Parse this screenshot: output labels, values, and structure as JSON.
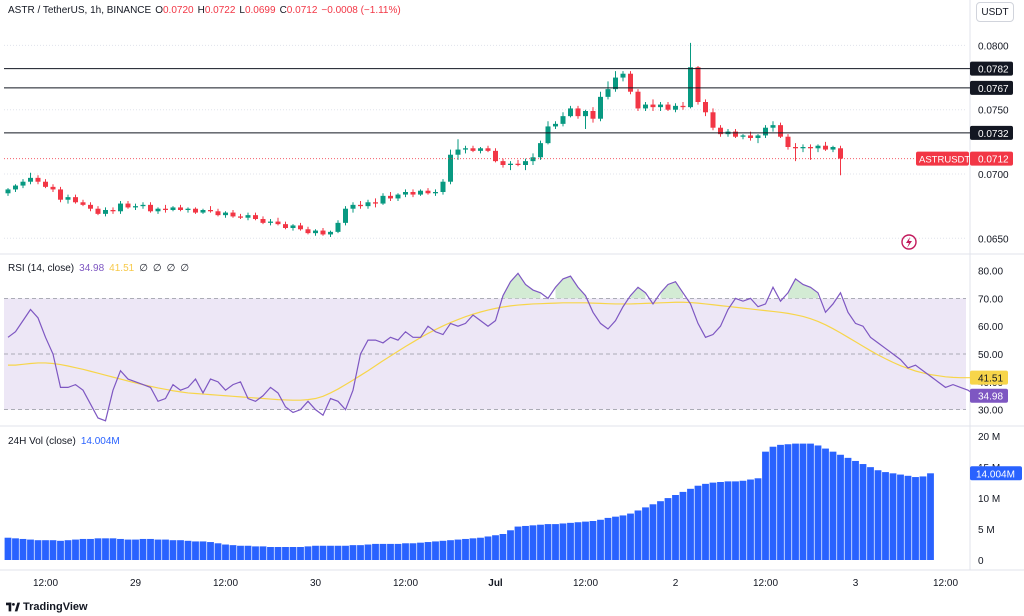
{
  "header": {
    "symbol": "ASTR / TetherUS, 1h, BINANCE",
    "open_label": "O",
    "open": "0.0720",
    "high_label": "H",
    "high": "0.0722",
    "low_label": "L",
    "low": "0.0699",
    "close_label": "C",
    "close": "0.0712",
    "change": "−0.0008 (−1.11%)",
    "currency_button": "USDT"
  },
  "colors": {
    "up": "#089981",
    "down": "#f23645",
    "rsi_line": "#7e57c2",
    "rsi_ma": "#f7d54a",
    "rsi_band": "#ede7f6",
    "volume": "#2962ff"
  },
  "rsi_legend": {
    "title": "RSI (14, close)",
    "rsi_value": "34.98",
    "ma_value": "41.51",
    "extra": [
      "∅",
      "∅",
      "∅",
      "∅"
    ]
  },
  "vol_legend": {
    "title": "24H Vol (close)",
    "value": "14.004M"
  },
  "price_tags": {
    "symbol_tag": "ASTRUSDT",
    "last_price": "0.0712"
  },
  "footer": {
    "brand": "TradingView"
  },
  "chart_data": [
    {
      "type": "candlestick",
      "y_ticks": [
        "0.0800",
        "0.0750",
        "0.0700",
        "0.0650"
      ],
      "y_tick_values": [
        0.08,
        0.075,
        0.07,
        0.065
      ],
      "ylim": [
        0.0644,
        0.0812
      ],
      "horizontal_lines": [
        {
          "value": 0.0782,
          "label": "0.0782"
        },
        {
          "value": 0.0767,
          "label": "0.0767"
        },
        {
          "value": 0.0732,
          "label": "0.0732"
        }
      ],
      "last_price": 0.0712,
      "x_tick_labels": [
        "12:00",
        "29",
        "12:00",
        "30",
        "12:00",
        "Jul",
        "12:00",
        "2",
        "12:00",
        "3",
        "12:00"
      ],
      "x_tick_index": [
        5,
        17,
        29,
        41,
        53,
        65,
        77,
        89,
        101,
        113,
        125
      ],
      "candles_ohlc": [
        [
          0.0685,
          0.0689,
          0.0683,
          0.0688
        ],
        [
          0.0688,
          0.0692,
          0.0686,
          0.0691
        ],
        [
          0.0691,
          0.0696,
          0.0689,
          0.0694
        ],
        [
          0.0694,
          0.0701,
          0.0692,
          0.0697
        ],
        [
          0.0697,
          0.0699,
          0.0692,
          0.0694
        ],
        [
          0.0694,
          0.0696,
          0.0689,
          0.069
        ],
        [
          0.069,
          0.0692,
          0.0686,
          0.0688
        ],
        [
          0.0688,
          0.069,
          0.0678,
          0.068
        ],
        [
          0.068,
          0.0684,
          0.0677,
          0.0682
        ],
        [
          0.0682,
          0.0684,
          0.0677,
          0.0678
        ],
        [
          0.0678,
          0.068,
          0.0675,
          0.0676
        ],
        [
          0.0676,
          0.0678,
          0.0671,
          0.0673
        ],
        [
          0.0673,
          0.0675,
          0.0668,
          0.0669
        ],
        [
          0.0669,
          0.0674,
          0.0667,
          0.0672
        ],
        [
          0.0672,
          0.0674,
          0.0669,
          0.0671
        ],
        [
          0.0671,
          0.0679,
          0.0669,
          0.0677
        ],
        [
          0.0677,
          0.0679,
          0.0673,
          0.0674
        ],
        [
          0.0674,
          0.0677,
          0.0672,
          0.0675
        ],
        [
          0.0675,
          0.0678,
          0.0673,
          0.0676
        ],
        [
          0.0676,
          0.0678,
          0.067,
          0.0671
        ],
        [
          0.0671,
          0.0674,
          0.0669,
          0.0673
        ],
        [
          0.0673,
          0.0676,
          0.067,
          0.0672
        ],
        [
          0.0672,
          0.0675,
          0.0671,
          0.0674
        ],
        [
          0.0674,
          0.0676,
          0.0671,
          0.0672
        ],
        [
          0.0672,
          0.0674,
          0.067,
          0.0673
        ],
        [
          0.0673,
          0.0674,
          0.0669,
          0.067
        ],
        [
          0.067,
          0.0673,
          0.0669,
          0.0672
        ],
        [
          0.0672,
          0.0675,
          0.067,
          0.0671
        ],
        [
          0.0671,
          0.0673,
          0.0667,
          0.0668
        ],
        [
          0.0668,
          0.0671,
          0.0666,
          0.067
        ],
        [
          0.067,
          0.0672,
          0.0666,
          0.0667
        ],
        [
          0.0667,
          0.0669,
          0.0665,
          0.0666
        ],
        [
          0.0666,
          0.067,
          0.0664,
          0.0668
        ],
        [
          0.0668,
          0.067,
          0.0664,
          0.0665
        ],
        [
          0.0665,
          0.0667,
          0.0661,
          0.0662
        ],
        [
          0.0662,
          0.0665,
          0.066,
          0.0663
        ],
        [
          0.0663,
          0.0666,
          0.066,
          0.0661
        ],
        [
          0.0661,
          0.0663,
          0.0657,
          0.0658
        ],
        [
          0.0658,
          0.0661,
          0.0656,
          0.066
        ],
        [
          0.066,
          0.0662,
          0.0656,
          0.0657
        ],
        [
          0.0657,
          0.0659,
          0.0653,
          0.0654
        ],
        [
          0.0654,
          0.0657,
          0.0652,
          0.0656
        ],
        [
          0.0656,
          0.0658,
          0.0652,
          0.0653
        ],
        [
          0.0653,
          0.0656,
          0.0651,
          0.0655
        ],
        [
          0.0655,
          0.0664,
          0.0654,
          0.0662
        ],
        [
          0.0662,
          0.0675,
          0.066,
          0.0673
        ],
        [
          0.0673,
          0.0678,
          0.067,
          0.0676
        ],
        [
          0.0676,
          0.0679,
          0.0673,
          0.0675
        ],
        [
          0.0675,
          0.068,
          0.0673,
          0.0678
        ],
        [
          0.0678,
          0.0681,
          0.0674,
          0.0677
        ],
        [
          0.0677,
          0.0685,
          0.0676,
          0.0683
        ],
        [
          0.0683,
          0.0686,
          0.0679,
          0.0681
        ],
        [
          0.0681,
          0.0685,
          0.0679,
          0.0684
        ],
        [
          0.0684,
          0.0688,
          0.0682,
          0.0686
        ],
        [
          0.0686,
          0.0688,
          0.0682,
          0.0684
        ],
        [
          0.0684,
          0.0688,
          0.0683,
          0.0687
        ],
        [
          0.0687,
          0.0689,
          0.0684,
          0.0685
        ],
        [
          0.0685,
          0.0688,
          0.0683,
          0.0686
        ],
        [
          0.0686,
          0.0696,
          0.0684,
          0.0694
        ],
        [
          0.0694,
          0.0719,
          0.0692,
          0.0715
        ],
        [
          0.0715,
          0.0727,
          0.0711,
          0.0719
        ],
        [
          0.0719,
          0.0722,
          0.0716,
          0.072
        ],
        [
          0.072,
          0.0722,
          0.0717,
          0.0718
        ],
        [
          0.0718,
          0.0721,
          0.0716,
          0.072
        ],
        [
          0.072,
          0.0722,
          0.0717,
          0.0718
        ],
        [
          0.0718,
          0.072,
          0.0709,
          0.071
        ],
        [
          0.071,
          0.0712,
          0.0705,
          0.0707
        ],
        [
          0.0707,
          0.071,
          0.0703,
          0.0708
        ],
        [
          0.0708,
          0.0711,
          0.0706,
          0.0707
        ],
        [
          0.0707,
          0.0712,
          0.0703,
          0.071
        ],
        [
          0.071,
          0.0716,
          0.0707,
          0.0713
        ],
        [
          0.0713,
          0.0726,
          0.0711,
          0.0724
        ],
        [
          0.0724,
          0.0741,
          0.0723,
          0.0737
        ],
        [
          0.0737,
          0.0741,
          0.0735,
          0.0739
        ],
        [
          0.0739,
          0.0748,
          0.0737,
          0.0745
        ],
        [
          0.0745,
          0.0753,
          0.0744,
          0.0751
        ],
        [
          0.0751,
          0.0753,
          0.0743,
          0.0745
        ],
        [
          0.0745,
          0.075,
          0.0735,
          0.0749
        ],
        [
          0.0749,
          0.0752,
          0.074,
          0.0743
        ],
        [
          0.0743,
          0.0764,
          0.0741,
          0.076
        ],
        [
          0.076,
          0.0772,
          0.0758,
          0.0766
        ],
        [
          0.0766,
          0.078,
          0.0764,
          0.0775
        ],
        [
          0.0775,
          0.078,
          0.0772,
          0.0778
        ],
        [
          0.0778,
          0.078,
          0.0762,
          0.0764
        ],
        [
          0.0764,
          0.0766,
          0.0749,
          0.0751
        ],
        [
          0.0751,
          0.0756,
          0.0749,
          0.0754
        ],
        [
          0.0754,
          0.0758,
          0.0749,
          0.0752
        ],
        [
          0.0752,
          0.0756,
          0.0749,
          0.0754
        ],
        [
          0.0754,
          0.0756,
          0.0749,
          0.075
        ],
        [
          0.075,
          0.0755,
          0.0748,
          0.0753
        ],
        [
          0.0753,
          0.0756,
          0.075,
          0.0752
        ],
        [
          0.0752,
          0.0802,
          0.0751,
          0.0783
        ],
        [
          0.0783,
          0.0784,
          0.0754,
          0.0756
        ],
        [
          0.0756,
          0.0758,
          0.0745,
          0.0748
        ],
        [
          0.0748,
          0.0751,
          0.0734,
          0.0736
        ],
        [
          0.0736,
          0.0738,
          0.0729,
          0.0731
        ],
        [
          0.0731,
          0.0735,
          0.0729,
          0.0733
        ],
        [
          0.0733,
          0.0735,
          0.0728,
          0.0729
        ],
        [
          0.0729,
          0.0731,
          0.0727,
          0.073
        ],
        [
          0.073,
          0.0733,
          0.0726,
          0.0728
        ],
        [
          0.0728,
          0.0731,
          0.0724,
          0.073
        ],
        [
          0.073,
          0.0738,
          0.0728,
          0.0736
        ],
        [
          0.0736,
          0.0741,
          0.0733,
          0.0738
        ],
        [
          0.0738,
          0.074,
          0.0728,
          0.0729
        ],
        [
          0.0729,
          0.0731,
          0.0719,
          0.0721
        ],
        [
          0.0721,
          0.0724,
          0.071,
          0.072
        ],
        [
          0.072,
          0.0723,
          0.0717,
          0.0721
        ],
        [
          0.0721,
          0.0723,
          0.0711,
          0.072
        ],
        [
          0.072,
          0.0723,
          0.0717,
          0.0722
        ],
        [
          0.0722,
          0.0725,
          0.0718,
          0.0719
        ],
        [
          0.0719,
          0.0722,
          0.0717,
          0.0721
        ],
        [
          0.072,
          0.0722,
          0.0699,
          0.0712
        ]
      ]
    },
    {
      "type": "line",
      "name": "RSI (14, close)",
      "y_ticks": [
        "80.00",
        "70.00",
        "60.00",
        "50.00",
        "40.00",
        "30.00"
      ],
      "y_tick_values": [
        80,
        70,
        60,
        50,
        40,
        30
      ],
      "ylim": [
        27,
        82
      ],
      "band": [
        30,
        70
      ],
      "midline": 50,
      "rsi": [
        56,
        58,
        62,
        66,
        63,
        56,
        50,
        38,
        38,
        39,
        37,
        32,
        27,
        26,
        37,
        44,
        41,
        40,
        39,
        38,
        33,
        34,
        39,
        37,
        38,
        41,
        36,
        41,
        40,
        37,
        39,
        40,
        34,
        33,
        35,
        38,
        36,
        31,
        29,
        30,
        33,
        30,
        28,
        34,
        33,
        30,
        37,
        50,
        55,
        55,
        54,
        56,
        55,
        58,
        56,
        56,
        60,
        58,
        57,
        61,
        60,
        61,
        64,
        62,
        60,
        62,
        71,
        76,
        79,
        75,
        73,
        72,
        70,
        74,
        77,
        78,
        74,
        71,
        65,
        61,
        59,
        62,
        67,
        71,
        74,
        72,
        68,
        72,
        75,
        76,
        72,
        68,
        61,
        56,
        57,
        60,
        66,
        70,
        69,
        70,
        67,
        68,
        74,
        69,
        72,
        77,
        75,
        74,
        72,
        65,
        68,
        72,
        65,
        61,
        60,
        56,
        54,
        52,
        50,
        48,
        45,
        46,
        44,
        42,
        40,
        38,
        39,
        38,
        37,
        35
      ],
      "ma": [
        46,
        46,
        46.3,
        46.6,
        46.8,
        46.8,
        46.6,
        46.2,
        45.7,
        45.1,
        44.5,
        43.8,
        43.1,
        42.4,
        41.7,
        41.0,
        40.3,
        39.6,
        39.0,
        38.4,
        37.8,
        37.3,
        36.8,
        36.4,
        36.0,
        35.8,
        35.6,
        35.4,
        35.2,
        35.0,
        34.8,
        34.6,
        34.4,
        34.2,
        34.0,
        33.8,
        33.6,
        33.5,
        33.4,
        33.4,
        33.6,
        34.0,
        34.8,
        36.0,
        37.4,
        39.0,
        40.6,
        42.3,
        44.0,
        45.8,
        47.6,
        49.3,
        51.0,
        52.7,
        54.3,
        55.9,
        57.4,
        58.8,
        60.1,
        61.3,
        62.4,
        63.4,
        64.3,
        65.1,
        65.8,
        66.4,
        66.9,
        67.3,
        67.6,
        67.8,
        68.0,
        68.1,
        68.2,
        68.3,
        68.4,
        68.4,
        68.4,
        68.4,
        68.3,
        68.2,
        68.1,
        68.0,
        68.0,
        68.0,
        68.1,
        68.2,
        68.3,
        68.4,
        68.5,
        68.6,
        68.6,
        68.5,
        68.3,
        68.0,
        67.7,
        67.4,
        67.1,
        66.8,
        66.5,
        66.2,
        65.9,
        65.6,
        65.3,
        65.0,
        64.6,
        64.1,
        63.5,
        62.7,
        61.7,
        60.5,
        59.1,
        57.6,
        56.0,
        54.4,
        52.8,
        51.2,
        49.7,
        48.3,
        47.0,
        45.8,
        44.8,
        43.9,
        43.2,
        42.6,
        42.2,
        41.8,
        41.6,
        41.5,
        41.5,
        41.51
      ]
    },
    {
      "type": "bar",
      "name": "24H Vol (close)",
      "y_ticks": [
        "20 M",
        "15 M",
        "10 M",
        "5 M",
        "0"
      ],
      "y_tick_values": [
        20,
        15,
        10,
        5,
        0
      ],
      "ylim": [
        0,
        21
      ],
      "unit": "M",
      "values": [
        3.6,
        3.5,
        3.4,
        3.3,
        3.2,
        3.2,
        3.2,
        3.1,
        3.2,
        3.3,
        3.4,
        3.4,
        3.5,
        3.5,
        3.5,
        3.4,
        3.3,
        3.3,
        3.4,
        3.4,
        3.3,
        3.3,
        3.2,
        3.2,
        3.1,
        3.0,
        3.0,
        2.9,
        2.7,
        2.5,
        2.4,
        2.3,
        2.3,
        2.2,
        2.2,
        2.1,
        2.1,
        2.1,
        2.1,
        2.1,
        2.2,
        2.3,
        2.3,
        2.3,
        2.3,
        2.3,
        2.4,
        2.4,
        2.5,
        2.6,
        2.6,
        2.6,
        2.6,
        2.7,
        2.7,
        2.8,
        2.9,
        3.0,
        3.1,
        3.2,
        3.3,
        3.4,
        3.5,
        3.6,
        3.8,
        4.0,
        4.2,
        4.8,
        5.4,
        5.5,
        5.6,
        5.7,
        5.8,
        5.8,
        5.9,
        6.0,
        6.1,
        6.2,
        6.3,
        6.5,
        6.8,
        7.0,
        7.2,
        7.5,
        8.0,
        8.5,
        9.0,
        9.5,
        10.0,
        10.5,
        11.0,
        11.5,
        12.0,
        12.3,
        12.5,
        12.6,
        12.7,
        12.7,
        12.8,
        13.0,
        13.2,
        17.5,
        18.3,
        18.6,
        18.7,
        18.8,
        18.8,
        18.8,
        18.5,
        18.0,
        17.5,
        17.0,
        16.5,
        16.0,
        15.5,
        15.0,
        14.5,
        14.2,
        14.0,
        13.8,
        13.6,
        13.4,
        13.5,
        14.004
      ]
    }
  ]
}
